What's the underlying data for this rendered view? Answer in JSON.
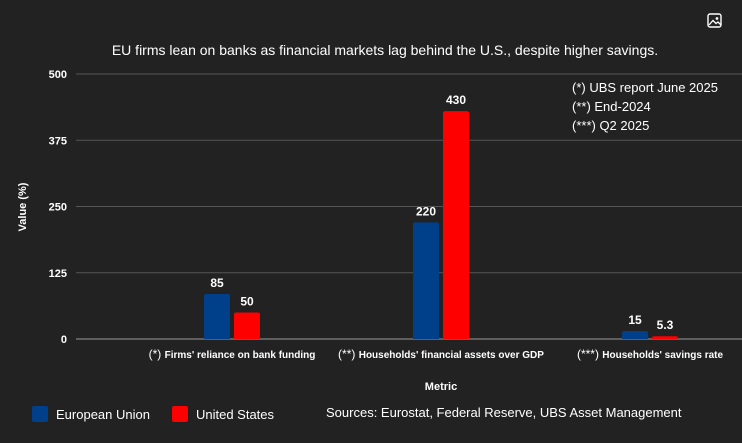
{
  "chart_data": {
    "type": "bar",
    "title": "EU firms lean on banks as financial markets lag behind the U.S., despite higher savings.",
    "xlabel": "Metric",
    "ylabel": "Value (%)",
    "ylim": [
      0,
      500
    ],
    "yticks": [
      0,
      125,
      250,
      375,
      500
    ],
    "categories": [
      {
        "prefix": "(*)",
        "label": "Firms' reliance on bank funding"
      },
      {
        "prefix": "(**)",
        "label": "Households' financial assets over GDP"
      },
      {
        "prefix": "(***)",
        "label": "Households' savings rate"
      }
    ],
    "series": [
      {
        "name": "European Union",
        "color": "#003f8a",
        "values": [
          85,
          220,
          15
        ],
        "labels": [
          "85",
          "220",
          "15"
        ]
      },
      {
        "name": "United States",
        "color": "#ff0000",
        "values": [
          50,
          430,
          5.3
        ],
        "labels": [
          "50",
          "430",
          "5.3"
        ]
      }
    ],
    "notes": [
      "(*) UBS report June 2025",
      "(**) End-2024",
      "(***) Q2 2025"
    ],
    "source": "Sources: Eurostat, Federal Reserve, UBS Asset Management",
    "legend_position": "bottom-left",
    "grid": true
  },
  "icons": {
    "top_right": "image-icon"
  }
}
